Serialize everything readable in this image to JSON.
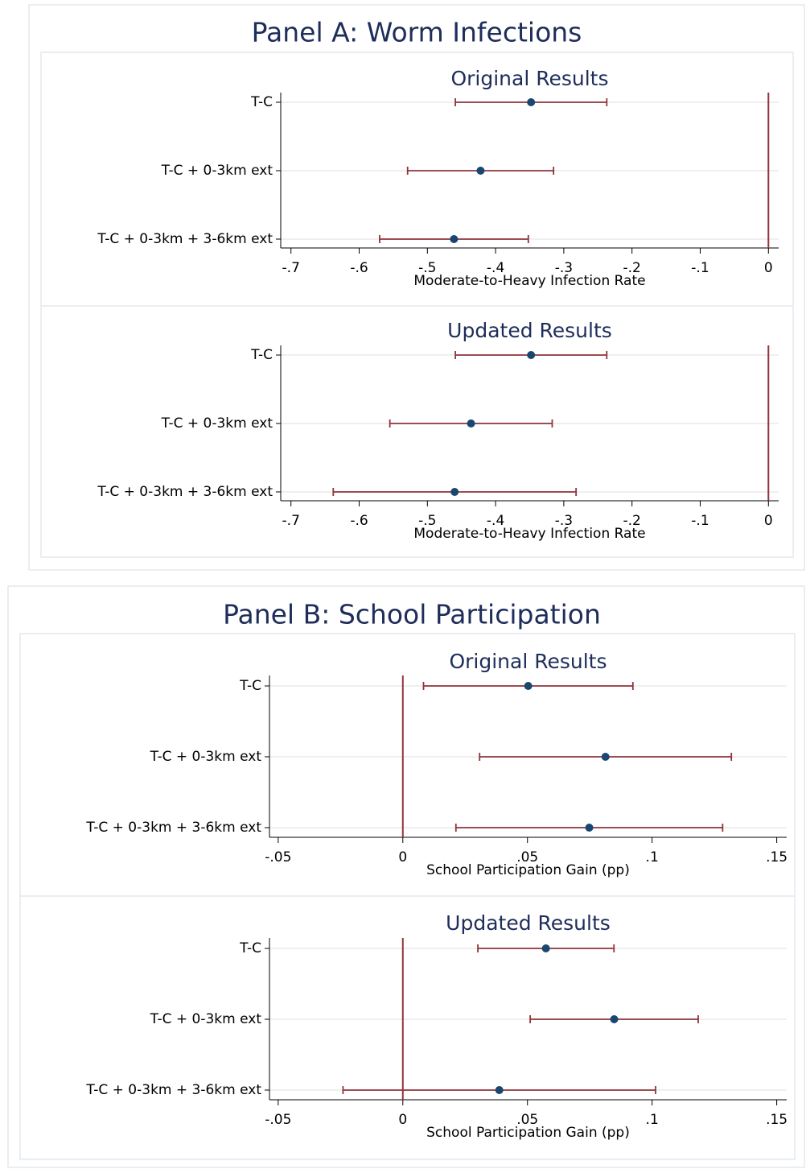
{
  "panels": [
    {
      "title": "Panel A: Worm Infections"
    },
    {
      "title": "Panel B: School Participation"
    }
  ],
  "chart_data": [
    {
      "type": "errorbar",
      "title": "Original Results",
      "xlabel": "Moderate-to-Heavy Infection Rate",
      "categories": [
        "T-C",
        "T-C + 0-3km ext",
        "T-C + 0-3km + 3-6km ext"
      ],
      "values": [
        -0.348,
        -0.422,
        -0.461
      ],
      "errors": [
        0.111,
        0.107,
        0.109
      ],
      "xlim": [
        -0.715,
        0.015
      ],
      "xticks": [
        {
          "value": -0.7,
          "label": "-.7"
        },
        {
          "value": -0.6,
          "label": "-.6"
        },
        {
          "value": -0.5,
          "label": "-.5"
        },
        {
          "value": -0.4,
          "label": "-.4"
        },
        {
          "value": -0.3,
          "label": "-.3"
        },
        {
          "value": -0.2,
          "label": "-.2"
        },
        {
          "value": -0.1,
          "label": "-.1"
        },
        0
      ],
      "reference_line": 0,
      "grid": true,
      "color": "#1a476f",
      "bar_color": "#90353b"
    },
    {
      "type": "errorbar",
      "title": "Updated Results",
      "xlabel": "Moderate-to-Heavy Infection Rate",
      "categories": [
        "T-C",
        "T-C + 0-3km ext",
        "T-C + 0-3km + 3-6km ext"
      ],
      "values": [
        -0.348,
        -0.436,
        -0.46
      ],
      "errors": [
        0.111,
        0.119,
        0.178
      ],
      "xlim": [
        -0.715,
        0.015
      ],
      "xticks": [
        {
          "value": -0.7,
          "label": "-.7"
        },
        {
          "value": -0.6,
          "label": "-.6"
        },
        {
          "value": -0.5,
          "label": "-.5"
        },
        {
          "value": -0.4,
          "label": "-.4"
        },
        {
          "value": -0.3,
          "label": "-.3"
        },
        {
          "value": -0.2,
          "label": "-.2"
        },
        {
          "value": -0.1,
          "label": "-.1"
        },
        0
      ],
      "reference_line": 0,
      "grid": true,
      "color": "#1a476f",
      "bar_color": "#90353b"
    },
    {
      "type": "errorbar",
      "title": "Original Results",
      "xlabel": "School Participation Gain (pp)",
      "categories": [
        "T-C",
        "T-C + 0-3km ext",
        "T-C + 0-3km + 3-6km ext"
      ],
      "values": [
        0.0503,
        0.0813,
        0.0748
      ],
      "errors": [
        0.042,
        0.0505,
        0.0535
      ],
      "xlim": [
        -0.0535,
        0.154
      ],
      "xticks": [
        {
          "value": -0.05,
          "label": "-.05"
        },
        0,
        {
          "value": 0.05,
          "label": ".05"
        },
        {
          "value": 0.1,
          "label": ".1"
        },
        {
          "value": 0.15,
          "label": ".15"
        }
      ],
      "reference_line": 0,
      "grid": true,
      "color": "#1a476f",
      "bar_color": "#90353b"
    },
    {
      "type": "errorbar",
      "title": "Updated Results",
      "xlabel": "School Participation Gain (pp)",
      "categories": [
        "T-C",
        "T-C + 0-3km ext",
        "T-C + 0-3km + 3-6km ext"
      ],
      "values": [
        0.0574,
        0.0848,
        0.0387
      ],
      "errors": [
        0.0273,
        0.0337,
        0.0627
      ],
      "xlim": [
        -0.0535,
        0.154
      ],
      "xticks": [
        {
          "value": -0.05,
          "label": "-.05"
        },
        0,
        {
          "value": 0.05,
          "label": ".05"
        },
        {
          "value": 0.1,
          "label": ".1"
        },
        {
          "value": 0.15,
          "label": ".15"
        }
      ],
      "reference_line": 0,
      "grid": true,
      "color": "#1a476f",
      "bar_color": "#90353b"
    }
  ]
}
